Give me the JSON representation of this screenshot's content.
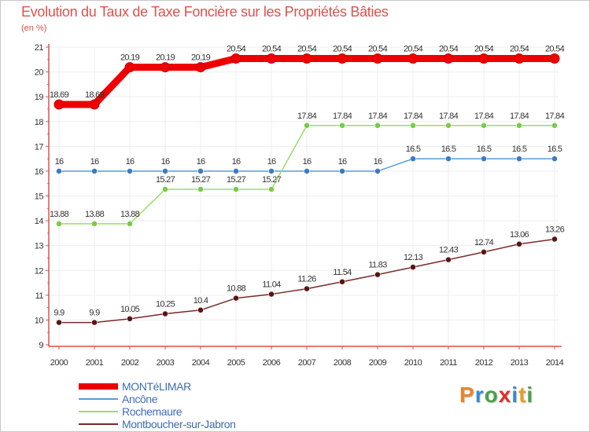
{
  "colors": {
    "title": "#e0504a",
    "axis": "#e0504a",
    "tick_text": "#333333",
    "grid": "#eeeeee",
    "legend_text": "#3f6db3"
  },
  "chart_data": {
    "type": "line",
    "title": "Evolution du Taux de Taxe Foncière sur les Propriétés Bâties",
    "subtitle": "(en %)",
    "x": [
      "2000",
      "2001",
      "2002",
      "2003",
      "2004",
      "2005",
      "2006",
      "2007",
      "2008",
      "2009",
      "2010",
      "2011",
      "2012",
      "2013",
      "2014"
    ],
    "ylim": [
      9,
      21
    ],
    "yticks": [
      "9",
      "10",
      "11",
      "12",
      "13",
      "14",
      "15",
      "16",
      "17",
      "18",
      "19",
      "20",
      "21"
    ],
    "series": [
      {
        "name": "MONTéLIMAR",
        "color": "#ee0000",
        "width": 9,
        "values": [
          18.69,
          18.69,
          20.19,
          20.19,
          20.19,
          20.54,
          20.54,
          20.54,
          20.54,
          20.54,
          20.54,
          20.54,
          20.54,
          20.54,
          20.54
        ],
        "labels": [
          "18.69",
          "18.69",
          "20.19",
          "20.19",
          "20.19",
          "20.54",
          "20.54",
          "20.54",
          "20.54",
          "20.54",
          "20.54",
          "20.54",
          "20.54",
          "20.54",
          "20.54"
        ]
      },
      {
        "name": "Ancône",
        "color": "#5b9bd5",
        "marker": "#3d7cc0",
        "width": 1.5,
        "values": [
          16,
          16,
          16,
          16,
          16,
          16,
          16,
          16,
          16,
          16,
          16.5,
          16.5,
          16.5,
          16.5,
          16.5
        ],
        "labels": [
          "16",
          "16",
          "16",
          "16",
          "16",
          "16",
          "16",
          "16",
          "16",
          "16",
          "16.5",
          "16.5",
          "16.5",
          "16.5",
          "16.5"
        ]
      },
      {
        "name": "Rochemaure",
        "color": "#99dd66",
        "marker": "#77cc44",
        "width": 1.5,
        "values": [
          13.88,
          13.88,
          13.88,
          15.27,
          15.27,
          15.27,
          15.27,
          17.84,
          17.84,
          17.84,
          17.84,
          17.84,
          17.84,
          17.84,
          17.84
        ],
        "labels": [
          "13.88",
          "13.88",
          "13.88",
          "15.27",
          "15.27",
          "15.27",
          "15.27",
          "17.84",
          "17.84",
          "17.84",
          "17.84",
          "17.84",
          "17.84",
          "17.84",
          "17.84"
        ]
      },
      {
        "name": "Montboucher-sur-Jabron",
        "color": "#7a2a2a",
        "marker": "#5a1414",
        "width": 1.5,
        "values": [
          9.9,
          9.9,
          10.05,
          10.25,
          10.4,
          10.88,
          11.04,
          11.26,
          11.54,
          11.83,
          12.13,
          12.43,
          12.74,
          13.06,
          13.26
        ],
        "labels": [
          "9.9",
          "9.9",
          "10.05",
          "10.25",
          "10.4",
          "10.88",
          "11.04",
          "11.26",
          "11.54",
          "11.83",
          "12.13",
          "12.43",
          "12.74",
          "13.06",
          "13.26"
        ]
      }
    ]
  },
  "brand": {
    "letters": [
      "P",
      "r",
      "o",
      "x",
      "i",
      "t",
      "i"
    ],
    "colors": [
      "#e8842a",
      "#3a8ad0",
      "#4aa04a",
      "#e03030",
      "#3a8ad0",
      "#e8a020",
      "#4aa04a"
    ]
  }
}
